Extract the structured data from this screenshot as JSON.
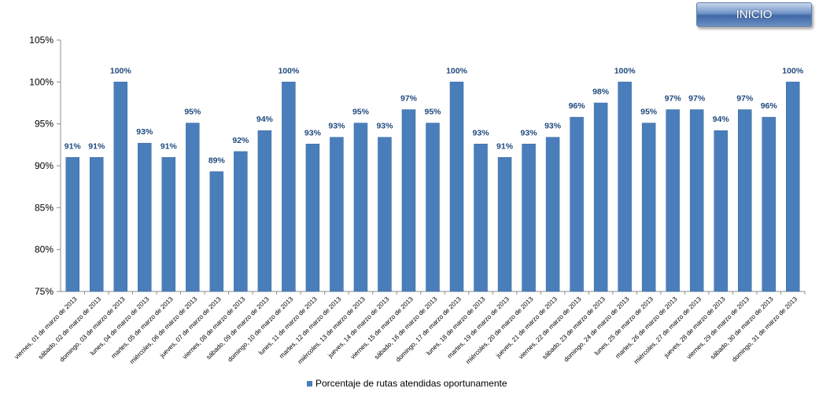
{
  "button": {
    "label": "INICIO"
  },
  "chart_data": {
    "type": "bar",
    "title": "",
    "xlabel": "",
    "ylabel": "",
    "ylim": [
      75,
      105
    ],
    "y_ticks": [
      "75%",
      "80%",
      "85%",
      "90%",
      "95%",
      "100%",
      "105%"
    ],
    "grid": false,
    "legend_position": "bottom",
    "bar_color": "#4a7ebb",
    "label_color": "#1f497d",
    "categories": [
      "viernes, 01 de marzo de 2013",
      "sábado, 02 de marzo de 2013",
      "domingo, 03 de marzo de 2013",
      "lunes, 04 de marzo de 2013",
      "martes, 05 de marzo de 2013",
      "miércoles, 06 de marzo de 2013",
      "jueves, 07 de marzo de 2013",
      "viernes, 08 de marzo de 2013",
      "sábado, 09 de marzo de 2013",
      "domingo, 10 de marzo de 2013",
      "lunes, 11 de marzo de 2013",
      "martes, 12 de marzo de 2013",
      "miércoles, 13 de marzo de 2013",
      "jueves, 14 de marzo de 2013",
      "viernes, 15 de marzo de 2013",
      "sábado, 16 de marzo de 2013",
      "domingo, 17 de marzo de 2013",
      "lunes, 18 de marzo de 2013",
      "martes, 19 de marzo de 2013",
      "miércoles, 20 de marzo de 2013",
      "jueves, 21 de marzo de 2013",
      "viernes, 22 de marzo de 2013",
      "sábado, 23 de marzo de 2013",
      "domingo, 24 de marzo de 2013",
      "lunes, 25 de marzo de 2013",
      "martes, 26 de marzo de 2013",
      "miércoles, 27 de marzo de 2013",
      "jueves, 28 de marzo de 2013",
      "viernes, 29 de marzo de 2013",
      "sábado, 30 de marzo de 2013",
      "domingo, 31 de marzo de 2013"
    ],
    "series": [
      {
        "name": "Porcentaje de rutas atendidas oportunamente",
        "values": [
          91.0,
          91.0,
          100,
          92.7,
          91.0,
          95.1,
          89.3,
          91.7,
          94.2,
          100,
          92.6,
          93.4,
          95.1,
          93.4,
          96.7,
          95.1,
          100,
          92.6,
          91.0,
          92.6,
          93.4,
          95.8,
          97.5,
          100,
          95.1,
          96.7,
          96.7,
          94.2,
          96.7,
          95.8,
          100
        ],
        "labels": [
          "91%",
          "91%",
          "100%",
          "93%",
          "91%",
          "95%",
          "89%",
          "92%",
          "94%",
          "100%",
          "93%",
          "93%",
          "95%",
          "93%",
          "97%",
          "95%",
          "100%",
          "93%",
          "91%",
          "93%",
          "93%",
          "96%",
          "98%",
          "100%",
          "95%",
          "97%",
          "97%",
          "94%",
          "97%",
          "96%",
          "100%"
        ]
      }
    ]
  }
}
